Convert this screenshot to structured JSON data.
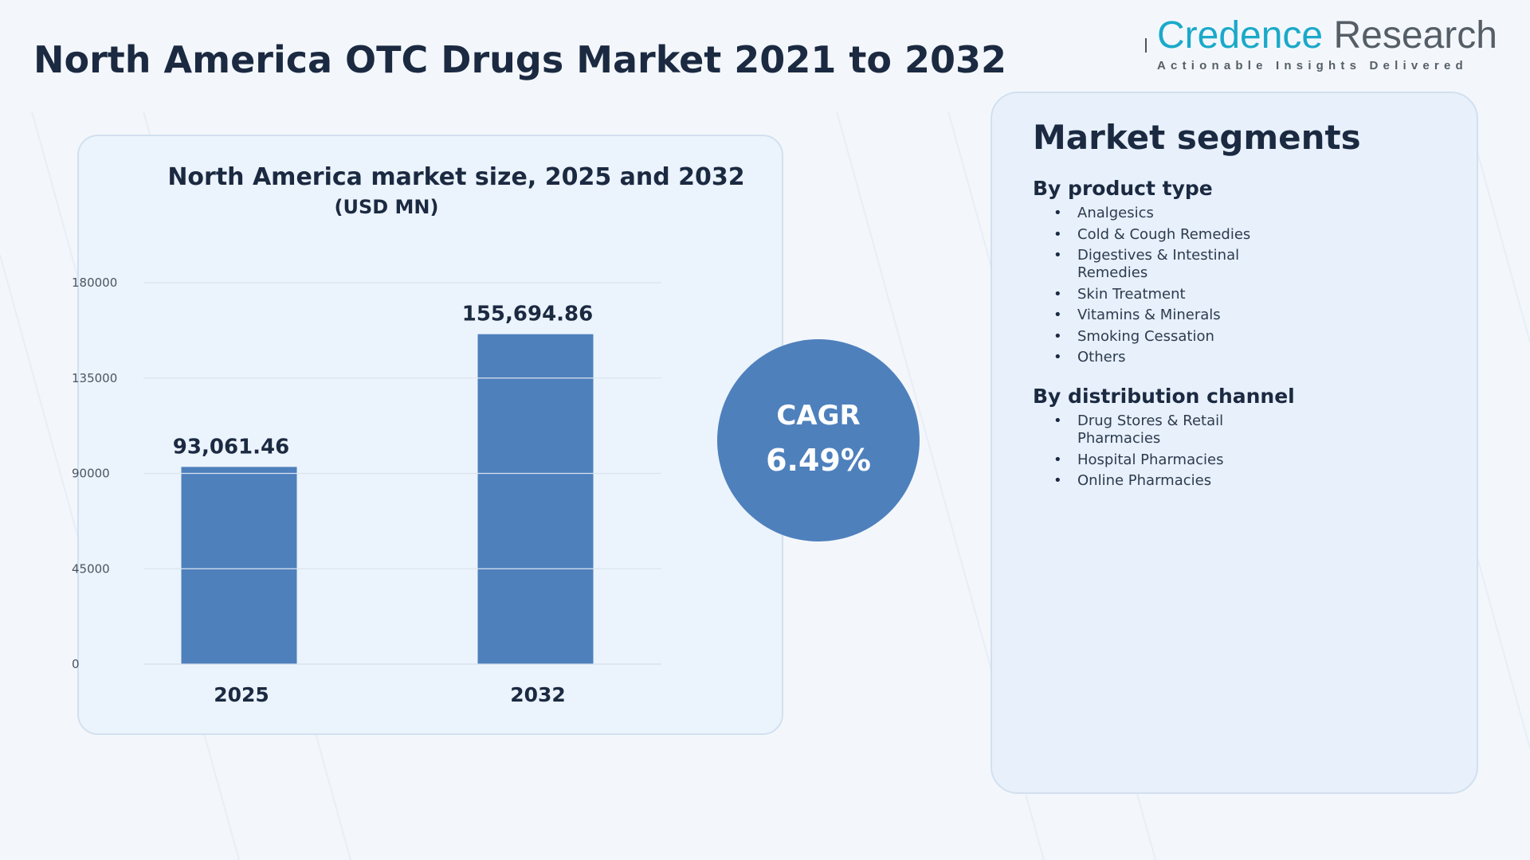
{
  "page": {
    "title": "North America OTC Drugs Market 2021 to 2032"
  },
  "logo": {
    "word1": "Credence",
    "word2": "Research",
    "tagline": "Actionable Insights Delivered",
    "color_primary": "#1aa9c9",
    "color_secondary": "#555e66"
  },
  "chart_data": {
    "type": "bar",
    "title": "North America market size, 2025 and 2032",
    "subtitle": "(USD MN)",
    "categories": [
      "2025",
      "2032"
    ],
    "values": [
      93061.46,
      155694.86
    ],
    "value_labels": [
      "93,061.46",
      "155,694.86"
    ],
    "xlabel": "",
    "ylabel": "",
    "ylim": [
      0,
      180000
    ],
    "yticks": [
      0,
      45000,
      90000,
      135000,
      180000
    ],
    "ytick_labels": [
      "0",
      "45000",
      "90000",
      "135000",
      "180000"
    ],
    "grid": true,
    "legend": "none",
    "bar_color": "#4e80bc"
  },
  "cagr": {
    "label": "CAGR",
    "value": "6.49%",
    "color": "#4e80bc"
  },
  "segments": {
    "title": "Market segments",
    "groups": [
      {
        "title": "By product type",
        "items": [
          "Analgesics",
          "Cold & Cough Remedies",
          "Digestives & Intestinal Remedies",
          "Skin Treatment",
          "Vitamins & Minerals",
          "Smoking Cessation",
          "Others"
        ]
      },
      {
        "title": "By distribution channel",
        "items": [
          "Drug Stores & Retail Pharmacies",
          "Hospital Pharmacies",
          "Online Pharmacies"
        ]
      }
    ]
  }
}
